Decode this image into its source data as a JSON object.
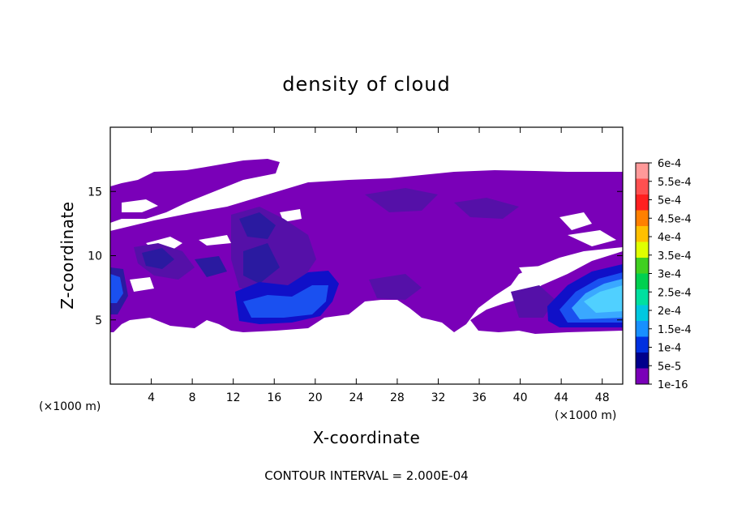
{
  "chart_data": {
    "type": "heatmap",
    "title": "density of cloud",
    "xlabel": "X-coordinate",
    "ylabel": "Z-coordinate",
    "x_unit_label": "(×1000 m)",
    "y_unit_label": "(×1000 m)",
    "xlim": [
      0,
      50
    ],
    "ylim": [
      0,
      20
    ],
    "x_ticks": [
      "4",
      "8",
      "12",
      "16",
      "20",
      "24",
      "28",
      "32",
      "36",
      "40",
      "44",
      "48"
    ],
    "y_ticks": [
      "5",
      "10",
      "15"
    ],
    "colorbar": {
      "labels": [
        "6e-4",
        "5.5e-4",
        "5e-4",
        "4.5e-4",
        "4e-4",
        "3.5e-4",
        "3e-4",
        "2.5e-4",
        "2e-4",
        "1.5e-4",
        "1e-4",
        "5e-5",
        "1e-16"
      ],
      "colors": [
        "#ff9999",
        "#ff5050",
        "#ff2020",
        "#ff8000",
        "#ffc000",
        "#e0ff00",
        "#40d020",
        "#00d050",
        "#00e0a0",
        "#00c8e0",
        "#1890ff",
        "#0030e0",
        "#00008c",
        "#7a00b8"
      ]
    },
    "footer": "CONTOUR INTERVAL = 2.000E-04",
    "grid": false
  }
}
